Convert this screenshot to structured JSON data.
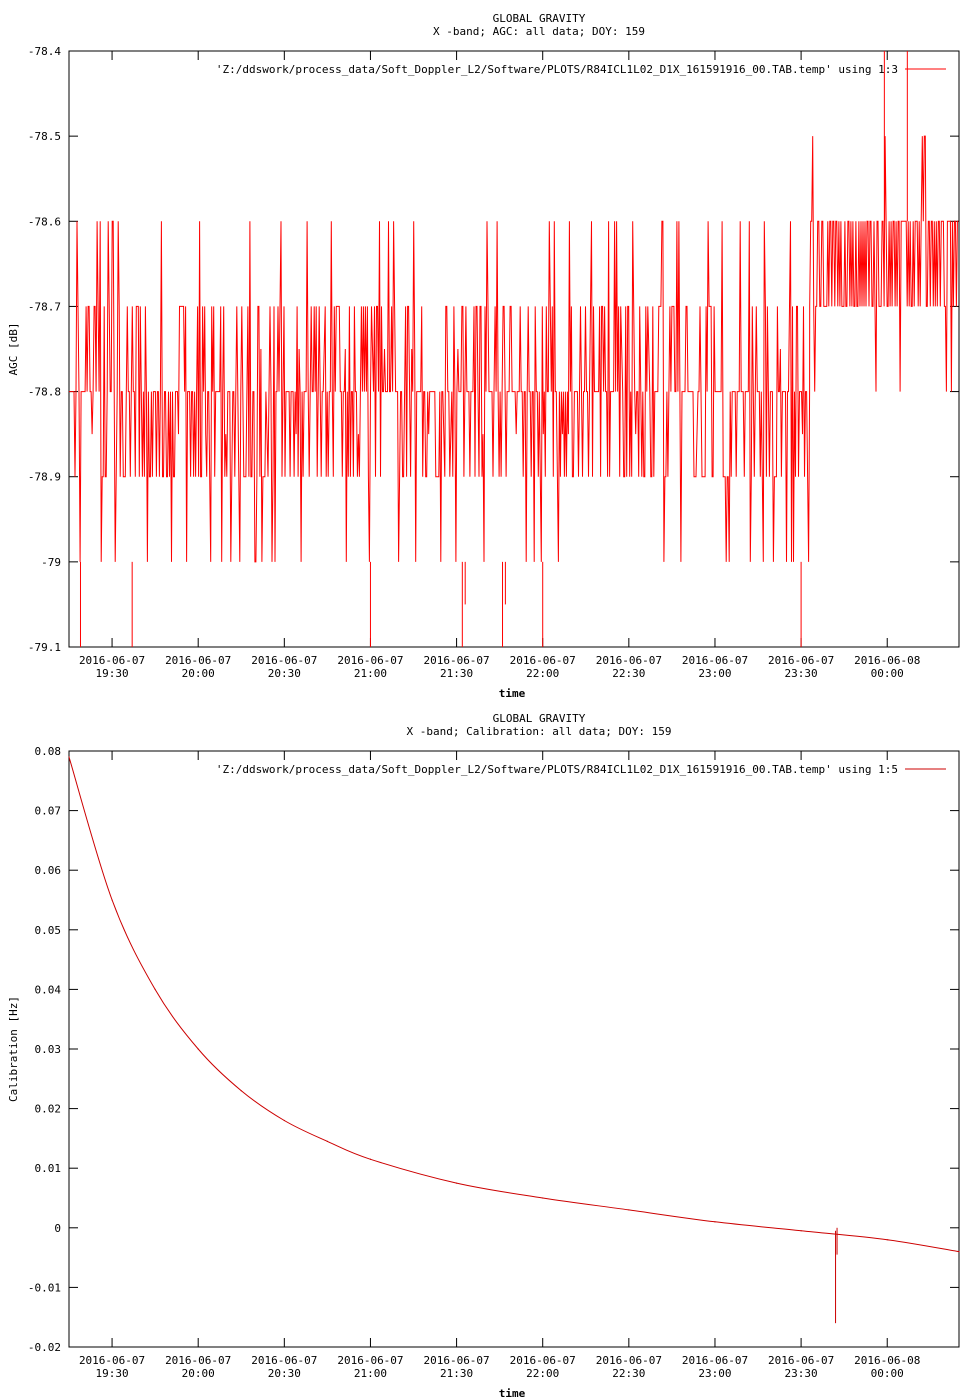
{
  "chart_data": [
    {
      "type": "line",
      "title": "GLOBAL GRAVITY",
      "subtitle": "X -band; AGC: all data; DOY: 159",
      "xlabel": "time",
      "ylabel": "AGC [dB]",
      "ylim": [
        -79.1,
        -78.4
      ],
      "yticks": [
        -78.4,
        -78.5,
        -78.6,
        -78.7,
        -78.8,
        -78.9,
        -79,
        -79.1
      ],
      "ytick_labels": [
        "-78.4",
        "-78.5",
        "-78.6",
        "-78.7",
        "-78.8",
        "-78.9",
        "-79",
        "-79.1"
      ],
      "xlim": [
        "2016-06-07 19:15",
        "2016-06-08 00:25"
      ],
      "xticks": [
        "2016-06-07 19:30",
        "2016-06-07 20:00",
        "2016-06-07 20:30",
        "2016-06-07 21:00",
        "2016-06-07 21:30",
        "2016-06-07 22:00",
        "2016-06-07 22:30",
        "2016-06-07 23:00",
        "2016-06-07 23:30",
        "2016-06-08 00:00"
      ],
      "xtick_dates": [
        "2016-06-07",
        "2016-06-07",
        "2016-06-07",
        "2016-06-07",
        "2016-06-07",
        "2016-06-07",
        "2016-06-07",
        "2016-06-07",
        "2016-06-07",
        "2016-06-08"
      ],
      "xtick_times": [
        "19:30",
        "20:00",
        "20:30",
        "21:00",
        "21:30",
        "22:00",
        "22:30",
        "23:00",
        "23:30",
        "00:00"
      ],
      "grid": false,
      "legend_position": "top-right",
      "series": [
        {
          "name": "'Z:/ddswork/process_data/Soft_Doppler_L2/Software/PLOTS/R84ICL1L02_D1X_161591916_00.TAB.temp' using 1:3",
          "color": "#ff0000",
          "segments": [
            {
              "x_start": "2016-06-07 19:15",
              "x_end": "2016-06-07 23:33",
              "typical_range": [
                -78.9,
                -78.7
              ],
              "min": -79.0,
              "max": -78.6
            },
            {
              "x_start": "2016-06-07 23:33",
              "x_end": "2016-06-08 00:25",
              "typical_range": [
                -78.7,
                -78.6
              ],
              "min": -78.8,
              "max": -78.5
            }
          ],
          "spikes": [
            {
              "x": "2016-06-07 19:19",
              "y": -79.1
            },
            {
              "x": "2016-06-07 19:37",
              "y": -79.1
            },
            {
              "x": "2016-06-07 21:00",
              "y": -79.1
            },
            {
              "x": "2016-06-07 21:32",
              "y": -79.1
            },
            {
              "x": "2016-06-07 21:33",
              "y": -79.05
            },
            {
              "x": "2016-06-07 21:46",
              "y": -79.1
            },
            {
              "x": "2016-06-07 21:47",
              "y": -79.05
            },
            {
              "x": "2016-06-07 22:00",
              "y": -79.1
            },
            {
              "x": "2016-06-07 23:30",
              "y": -79.1
            },
            {
              "x": "2016-06-07 23:59",
              "y": -78.4
            },
            {
              "x": "2016-06-08 00:07",
              "y": -78.4
            }
          ]
        }
      ]
    },
    {
      "type": "line",
      "title": "GLOBAL GRAVITY",
      "subtitle": "X -band; Calibration: all data; DOY: 159",
      "xlabel": "time",
      "ylabel": "Calibration [Hz]",
      "ylim": [
        -0.02,
        0.08
      ],
      "yticks": [
        0.08,
        0.07,
        0.06,
        0.05,
        0.04,
        0.03,
        0.02,
        0.01,
        0,
        -0.01,
        -0.02
      ],
      "ytick_labels": [
        "0.08",
        "0.07",
        "0.06",
        "0.05",
        "0.04",
        "0.03",
        "0.02",
        "0.01",
        "0",
        "-0.01",
        "-0.02"
      ],
      "xlim": [
        "2016-06-07 19:15",
        "2016-06-08 00:25"
      ],
      "xticks": [
        "2016-06-07 19:30",
        "2016-06-07 20:00",
        "2016-06-07 20:30",
        "2016-06-07 21:00",
        "2016-06-07 21:30",
        "2016-06-07 22:00",
        "2016-06-07 22:30",
        "2016-06-07 23:00",
        "2016-06-07 23:30",
        "2016-06-08 00:00"
      ],
      "xtick_dates": [
        "2016-06-07",
        "2016-06-07",
        "2016-06-07",
        "2016-06-07",
        "2016-06-07",
        "2016-06-07",
        "2016-06-07",
        "2016-06-07",
        "2016-06-07",
        "2016-06-08"
      ],
      "xtick_times": [
        "19:30",
        "20:00",
        "20:30",
        "21:00",
        "21:30",
        "22:00",
        "22:30",
        "23:00",
        "23:30",
        "00:00"
      ],
      "grid": false,
      "legend_position": "top-right",
      "series": [
        {
          "name": "'Z:/ddswork/process_data/Soft_Doppler_L2/Software/PLOTS/R84ICL1L02_D1X_161591916_00.TAB.temp' using 1:5",
          "color": "#cc0000",
          "x": [
            "2016-06-07 19:15",
            "2016-06-07 19:30",
            "2016-06-07 19:45",
            "2016-06-07 20:00",
            "2016-06-07 20:15",
            "2016-06-07 20:30",
            "2016-06-07 20:45",
            "2016-06-07 21:00",
            "2016-06-07 21:30",
            "2016-06-07 22:00",
            "2016-06-07 22:30",
            "2016-06-07 23:00",
            "2016-06-07 23:30",
            "2016-06-08 00:00",
            "2016-06-08 00:25"
          ],
          "y": [
            0.079,
            0.055,
            0.04,
            0.03,
            0.023,
            0.018,
            0.0145,
            0.0115,
            0.0075,
            0.005,
            0.003,
            0.001,
            -0.0005,
            -0.002,
            -0.004
          ],
          "spikes": [
            {
              "x": "2016-06-07 23:42",
              "y": -0.016
            },
            {
              "x": "2016-06-07 23:42",
              "y": -0.0005
            }
          ]
        }
      ]
    }
  ]
}
